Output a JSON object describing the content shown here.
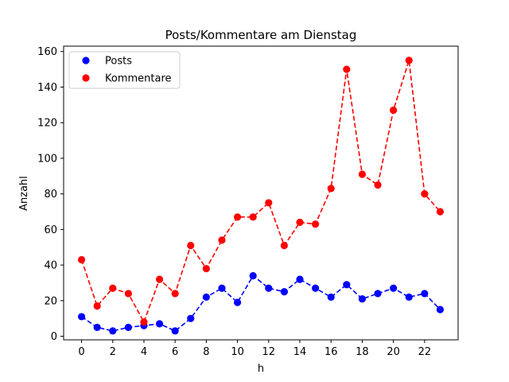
{
  "chart_data": {
    "type": "line",
    "title": "Posts/Kommentare am Dienstag",
    "xlabel": "h",
    "ylabel": "Anzahl",
    "xlim": [
      -1.15,
      24.15
    ],
    "ylim": [
      -2,
      163
    ],
    "xticks": [
      0,
      2,
      4,
      6,
      8,
      10,
      12,
      14,
      16,
      18,
      20,
      22
    ],
    "yticks": [
      0,
      20,
      40,
      60,
      80,
      100,
      120,
      140,
      160
    ],
    "x": [
      0,
      1,
      2,
      3,
      4,
      5,
      6,
      7,
      8,
      9,
      10,
      11,
      12,
      13,
      14,
      15,
      16,
      17,
      18,
      19,
      20,
      21,
      22,
      23
    ],
    "series": [
      {
        "name": "Posts",
        "color": "#0000ff",
        "values": [
          11,
          5,
          3,
          5,
          6,
          7,
          3,
          10,
          22,
          27,
          19,
          34,
          27,
          25,
          32,
          27,
          22,
          29,
          21,
          24,
          27,
          22,
          24,
          15
        ]
      },
      {
        "name": "Kommentare",
        "color": "#ff0000",
        "values": [
          43,
          17,
          27,
          24,
          8,
          32,
          24,
          51,
          38,
          54,
          67,
          67,
          75,
          51,
          64,
          63,
          83,
          150,
          91,
          85,
          127,
          155,
          80,
          70
        ]
      }
    ],
    "line_style": "dashed",
    "marker": "circle",
    "grid": false,
    "legend_position": "upper-left"
  }
}
